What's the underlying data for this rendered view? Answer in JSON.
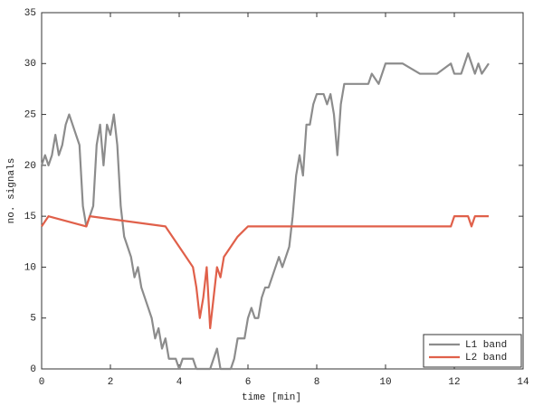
{
  "chart_data": {
    "type": "line",
    "xlabel": "time [min]",
    "ylabel": "no. signals",
    "xlim": [
      0,
      14
    ],
    "ylim": [
      0,
      35
    ],
    "xticks": [
      0,
      2,
      4,
      6,
      8,
      10,
      12,
      14
    ],
    "yticks": [
      0,
      5,
      10,
      15,
      20,
      25,
      30,
      35
    ],
    "grid": false,
    "legend": "lower right",
    "series": [
      {
        "name": "L1 band",
        "color": "#8c8c8c",
        "x": [
          0,
          0.1,
          0.2,
          0.3,
          0.4,
          0.5,
          0.6,
          0.7,
          0.8,
          0.9,
          1.0,
          1.1,
          1.2,
          1.3,
          1.4,
          1.5,
          1.6,
          1.7,
          1.8,
          1.9,
          2.0,
          2.1,
          2.2,
          2.3,
          2.4,
          2.5,
          2.6,
          2.7,
          2.8,
          2.9,
          3.0,
          3.1,
          3.2,
          3.3,
          3.4,
          3.5,
          3.6,
          3.7,
          3.8,
          3.9,
          4.0,
          4.1,
          4.2,
          4.3,
          4.4,
          4.5,
          4.6,
          4.7,
          4.8,
          4.9,
          5.0,
          5.1,
          5.2,
          5.3,
          5.4,
          5.5,
          5.6,
          5.7,
          5.8,
          5.9,
          6.0,
          6.1,
          6.2,
          6.3,
          6.4,
          6.5,
          6.6,
          6.7,
          6.8,
          6.9,
          7.0,
          7.1,
          7.2,
          7.3,
          7.4,
          7.5,
          7.6,
          7.7,
          7.8,
          7.9,
          8.0,
          8.1,
          8.2,
          8.3,
          8.4,
          8.5,
          8.6,
          8.7,
          8.8,
          8.9,
          9.0,
          9.5,
          9.6,
          9.8,
          10.0,
          10.5,
          11.0,
          11.5,
          11.9,
          12.0,
          12.2,
          12.4,
          12.5,
          12.6,
          12.7,
          12.8,
          13.0
        ],
        "values": [
          20,
          21,
          20,
          21,
          23,
          21,
          22,
          24,
          25,
          24,
          23,
          22,
          16,
          14,
          15,
          16,
          22,
          24,
          20,
          24,
          23,
          25,
          22,
          16,
          13,
          12,
          11,
          9,
          10,
          8,
          7,
          6,
          5,
          3,
          4,
          2,
          3,
          1,
          1,
          1,
          0,
          1,
          1,
          1,
          1,
          0,
          0,
          0,
          0,
          0,
          1,
          2,
          0,
          0,
          0,
          0,
          1,
          3,
          3,
          3,
          5,
          6,
          5,
          5,
          7,
          8,
          8,
          9,
          10,
          11,
          10,
          11,
          12,
          15,
          19,
          21,
          19,
          24,
          24,
          26,
          27,
          27,
          27,
          26,
          27,
          25,
          21,
          26,
          28,
          28,
          28,
          28,
          29,
          28,
          30,
          30,
          29,
          29,
          30,
          29,
          29,
          31,
          30,
          29,
          30,
          29,
          30
        ]
      },
      {
        "name": "L2 band",
        "color": "#e0604a",
        "x": [
          0,
          0.2,
          1.3,
          1.4,
          3.6,
          4.0,
          4.2,
          4.4,
          4.5,
          4.6,
          4.7,
          4.8,
          4.9,
          5.0,
          5.1,
          5.2,
          5.3,
          5.5,
          5.7,
          6.0,
          11.9,
          12.0,
          12.4,
          12.5,
          12.6,
          13.0
        ],
        "values": [
          14,
          15,
          14,
          15,
          14,
          12,
          11,
          10,
          8,
          5,
          7,
          10,
          4,
          7,
          10,
          9,
          11,
          12,
          13,
          14,
          14,
          15,
          15,
          14,
          15,
          15
        ]
      }
    ]
  }
}
